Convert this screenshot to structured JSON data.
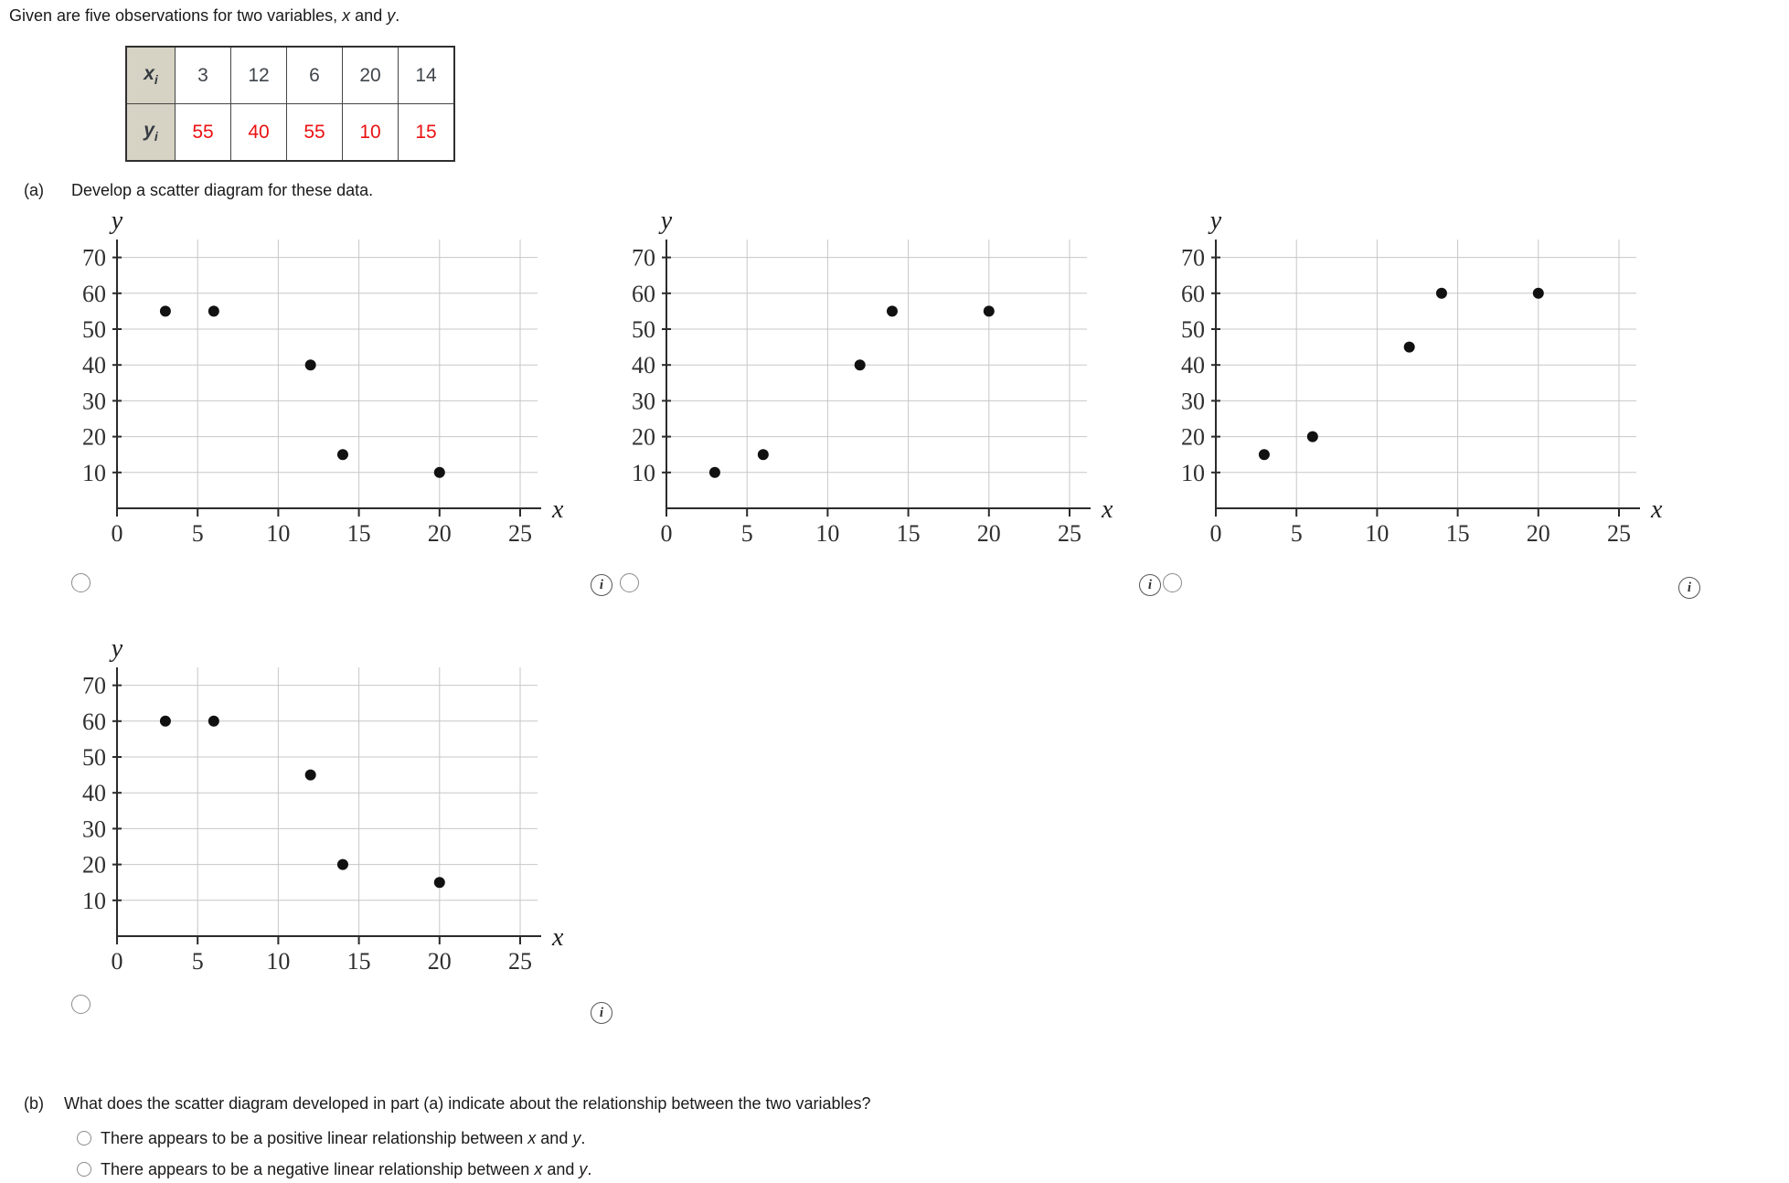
{
  "title_segments": [
    {
      "t": "Given are five observations for two variables, "
    },
    {
      "t": "x",
      "i": true
    },
    {
      "t": " and "
    },
    {
      "t": "y",
      "i": true
    },
    {
      "t": "."
    }
  ],
  "table": {
    "header_bg": "#d6d2c4",
    "rows": [
      {
        "var": "x",
        "sub": "i",
        "color": "#3f454b",
        "values": [
          "3",
          "12",
          "6",
          "20",
          "14"
        ]
      },
      {
        "var": "y",
        "sub": "i",
        "color": "#ec1111",
        "values": [
          "55",
          "40",
          "55",
          "10",
          "15"
        ]
      }
    ]
  },
  "part_a": {
    "label": "(a)",
    "text": "Develop a scatter diagram for these data."
  },
  "part_b": {
    "label": "(b)",
    "question": "What does the scatter diagram developed in part (a) indicate about the relationship between the two variables?",
    "options": [
      {
        "segments": [
          {
            "t": "There appears to be a positive linear relationship between "
          },
          {
            "t": "x",
            "i": true
          },
          {
            "t": " and "
          },
          {
            "t": "y",
            "i": true
          },
          {
            "t": "."
          }
        ]
      },
      {
        "segments": [
          {
            "t": "There appears to be a negative linear relationship between "
          },
          {
            "t": "x",
            "i": true
          },
          {
            "t": " and "
          },
          {
            "t": "y",
            "i": true
          },
          {
            "t": "."
          }
        ]
      }
    ]
  },
  "icons": {
    "info_glyph": "i"
  },
  "colors": {
    "grid": "#c7c7c7",
    "axis": "#2b2b2b",
    "point": "#111111",
    "tick_text": "#2f2f2f",
    "table_red": "#ec1111",
    "table_header_bg": "#d6d2c4"
  },
  "chart_data": [
    {
      "type": "scatter",
      "title": "option 1 scatter (negative pattern, matches data)",
      "xlabel": "x",
      "ylabel": "y",
      "xlim": [
        0,
        26
      ],
      "ylim": [
        0,
        75
      ],
      "xticks": [
        0,
        5,
        10,
        15,
        20,
        25
      ],
      "yticks": [
        10,
        20,
        30,
        40,
        50,
        60,
        70
      ],
      "grid": true,
      "points": [
        [
          3,
          55
        ],
        [
          6,
          55
        ],
        [
          12,
          40
        ],
        [
          14,
          15
        ],
        [
          20,
          10
        ]
      ]
    },
    {
      "type": "scatter",
      "title": "option 2 scatter (positive pattern)",
      "xlabel": "x",
      "ylabel": "y",
      "xlim": [
        0,
        26
      ],
      "ylim": [
        0,
        75
      ],
      "xticks": [
        0,
        5,
        10,
        15,
        20,
        25
      ],
      "yticks": [
        10,
        20,
        30,
        40,
        50,
        60,
        70
      ],
      "grid": true,
      "points": [
        [
          3,
          10
        ],
        [
          6,
          15
        ],
        [
          12,
          40
        ],
        [
          14,
          55
        ],
        [
          20,
          55
        ]
      ]
    },
    {
      "type": "scatter",
      "title": "option 3 scatter (positive pattern, shifted)",
      "xlabel": "x",
      "ylabel": "y",
      "xlim": [
        0,
        26
      ],
      "ylim": [
        0,
        75
      ],
      "xticks": [
        0,
        5,
        10,
        15,
        20,
        25
      ],
      "yticks": [
        10,
        20,
        30,
        40,
        50,
        60,
        70
      ],
      "grid": true,
      "points": [
        [
          3,
          15
        ],
        [
          6,
          20
        ],
        [
          12,
          45
        ],
        [
          14,
          60
        ],
        [
          20,
          60
        ]
      ]
    },
    {
      "type": "scatter",
      "title": "option 4 scatter (negative pattern, shifted)",
      "xlabel": "x",
      "ylabel": "y",
      "xlim": [
        0,
        26
      ],
      "ylim": [
        0,
        75
      ],
      "xticks": [
        0,
        5,
        10,
        15,
        20,
        25
      ],
      "yticks": [
        10,
        20,
        30,
        40,
        50,
        60,
        70
      ],
      "grid": true,
      "points": [
        [
          3,
          60
        ],
        [
          6,
          60
        ],
        [
          12,
          45
        ],
        [
          14,
          20
        ],
        [
          20,
          15
        ]
      ]
    }
  ]
}
